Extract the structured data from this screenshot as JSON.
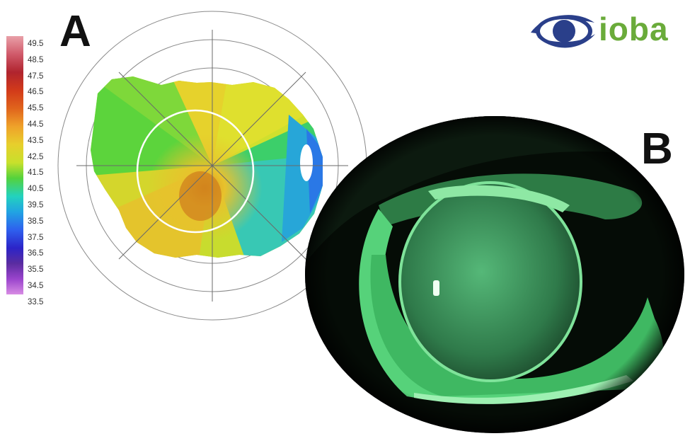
{
  "panel_labels": {
    "a": "A",
    "b": "B"
  },
  "logo": {
    "text": "ioba",
    "icon": "eye-icon",
    "colors": {
      "eye": "#2a3f8a",
      "text": "#6aab3a"
    }
  },
  "color_scale": {
    "values": [
      "49.5",
      "48.5",
      "47.5",
      "46.5",
      "45.5",
      "44.5",
      "43.5",
      "42.5",
      "41.5",
      "40.5",
      "39.5",
      "38.5",
      "37.5",
      "36.5",
      "35.5",
      "34.5",
      "33.5"
    ]
  }
}
